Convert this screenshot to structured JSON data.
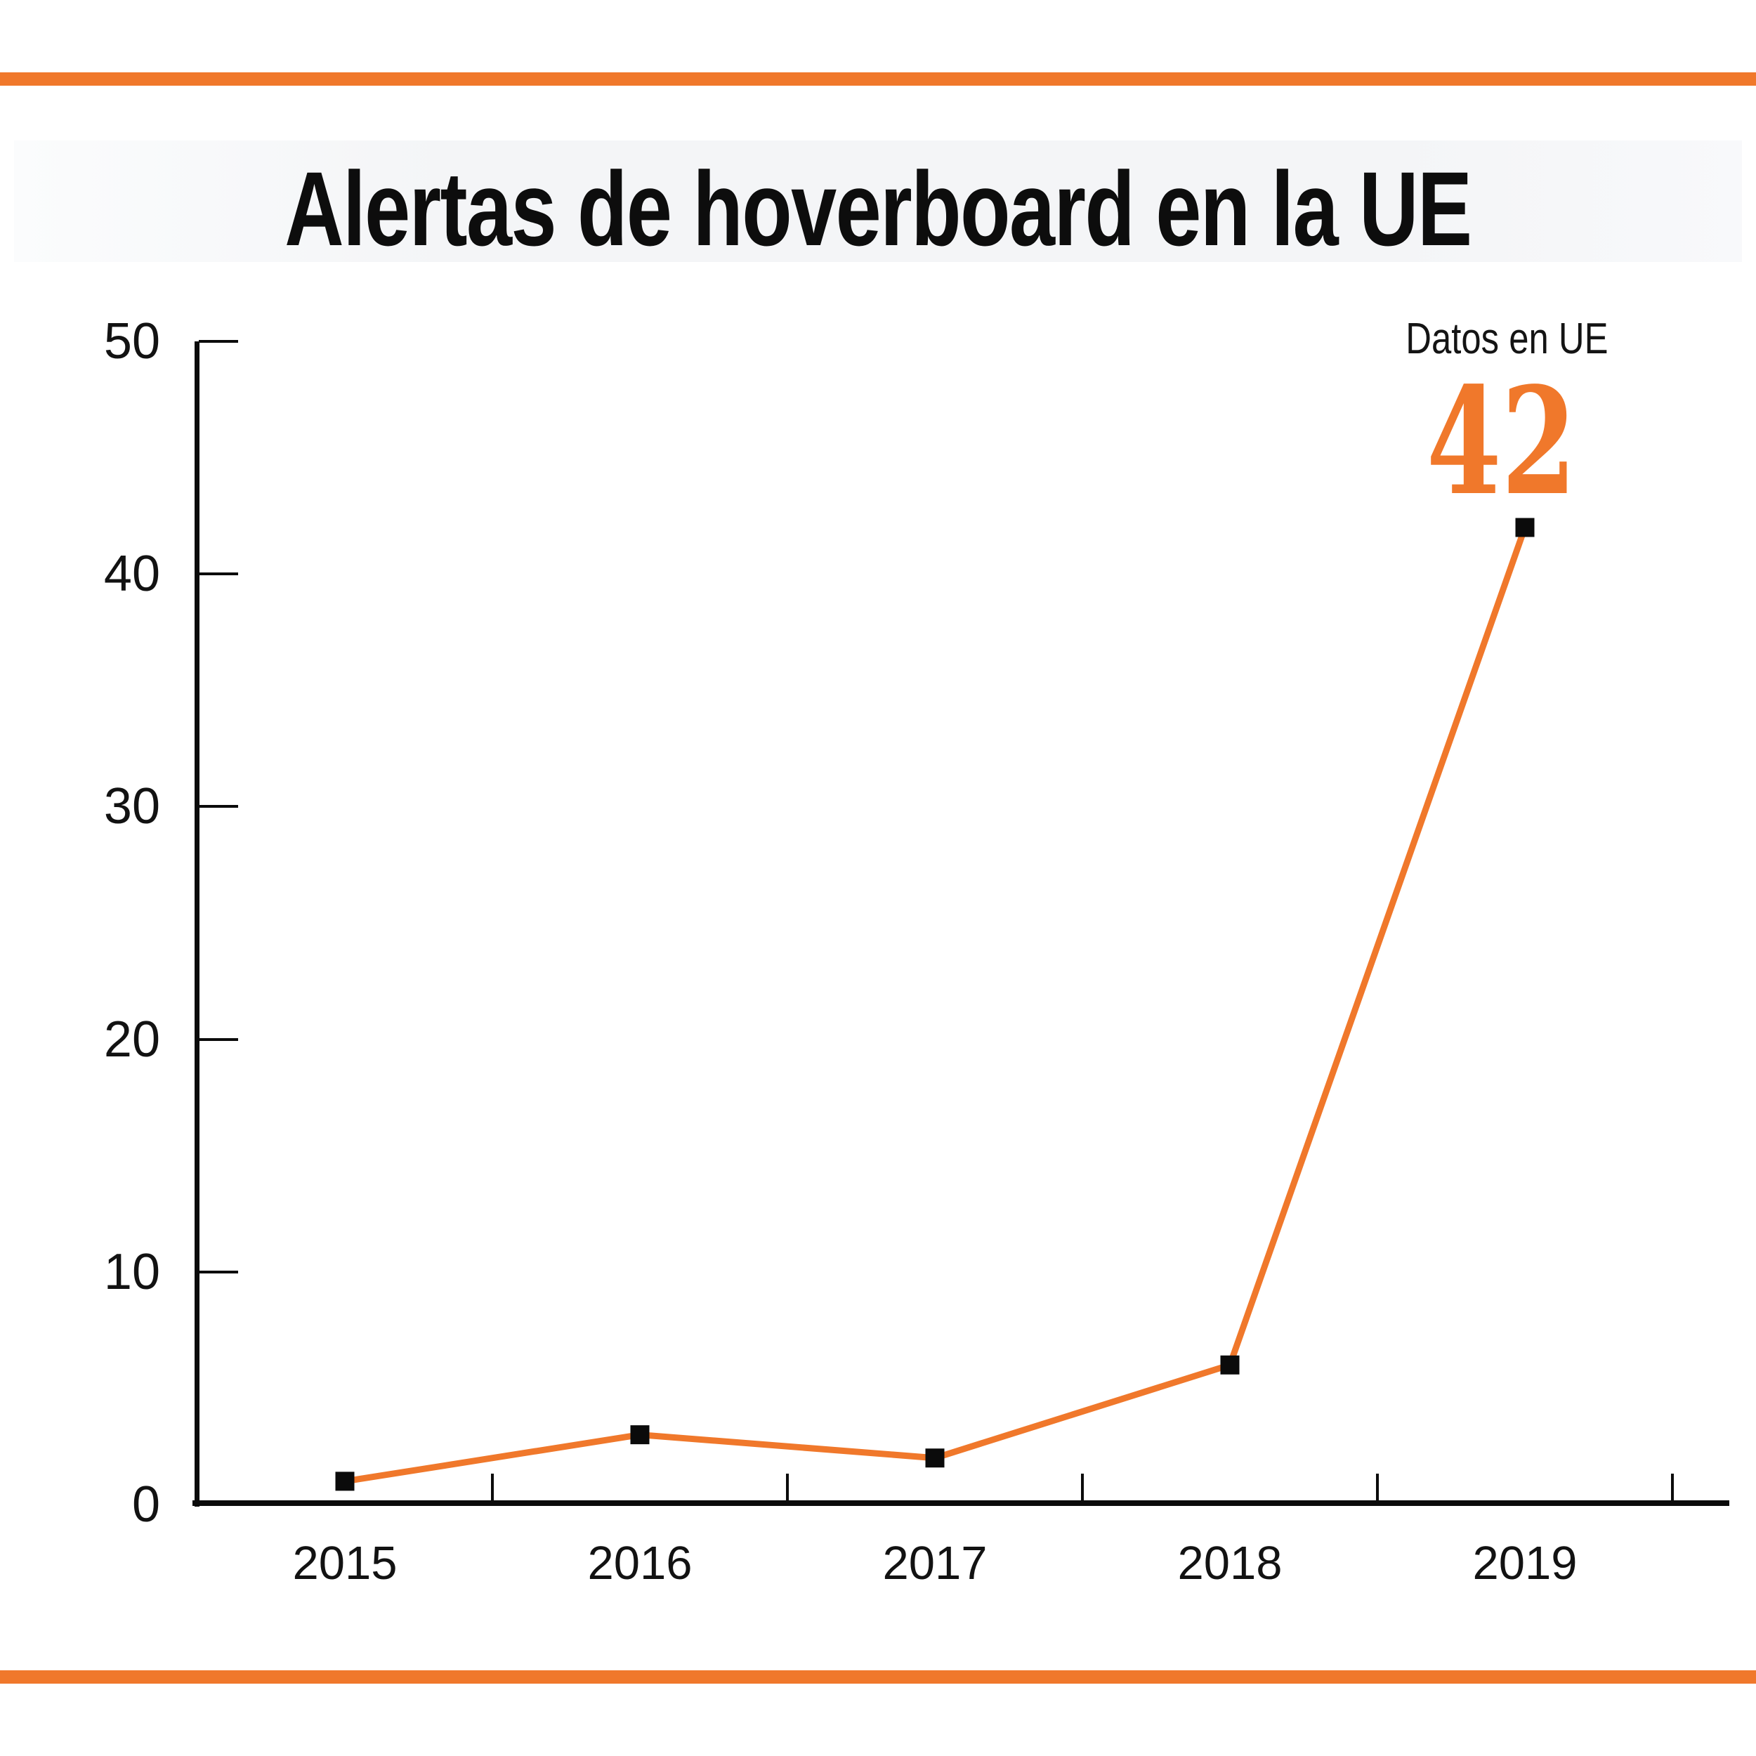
{
  "page": {
    "background": "#ffffff",
    "accent_color": "#F0782B",
    "text_color": "#121212",
    "title_band_color": "#f4f5f7"
  },
  "header": {
    "title": "Alertas de hoverboard en la UE"
  },
  "annotation": {
    "label": "Datos en UE",
    "value": "42"
  },
  "chart_data": {
    "type": "line",
    "title": "Alertas de hoverboard en la UE",
    "categories": [
      "2015",
      "2016",
      "2017",
      "2018",
      "2019"
    ],
    "values": [
      1,
      3,
      2,
      6,
      42
    ],
    "xlabel": "",
    "ylabel": "",
    "ylim": [
      0,
      50
    ],
    "yticks": [
      0,
      10,
      20,
      30,
      40,
      50
    ],
    "grid": false,
    "legend": "none",
    "line_color": "#F0782B",
    "marker": "square",
    "marker_color": "#0b0b0b",
    "annotation_label": "Datos en UE",
    "annotation_value": 42,
    "annotation_year": "2019"
  }
}
